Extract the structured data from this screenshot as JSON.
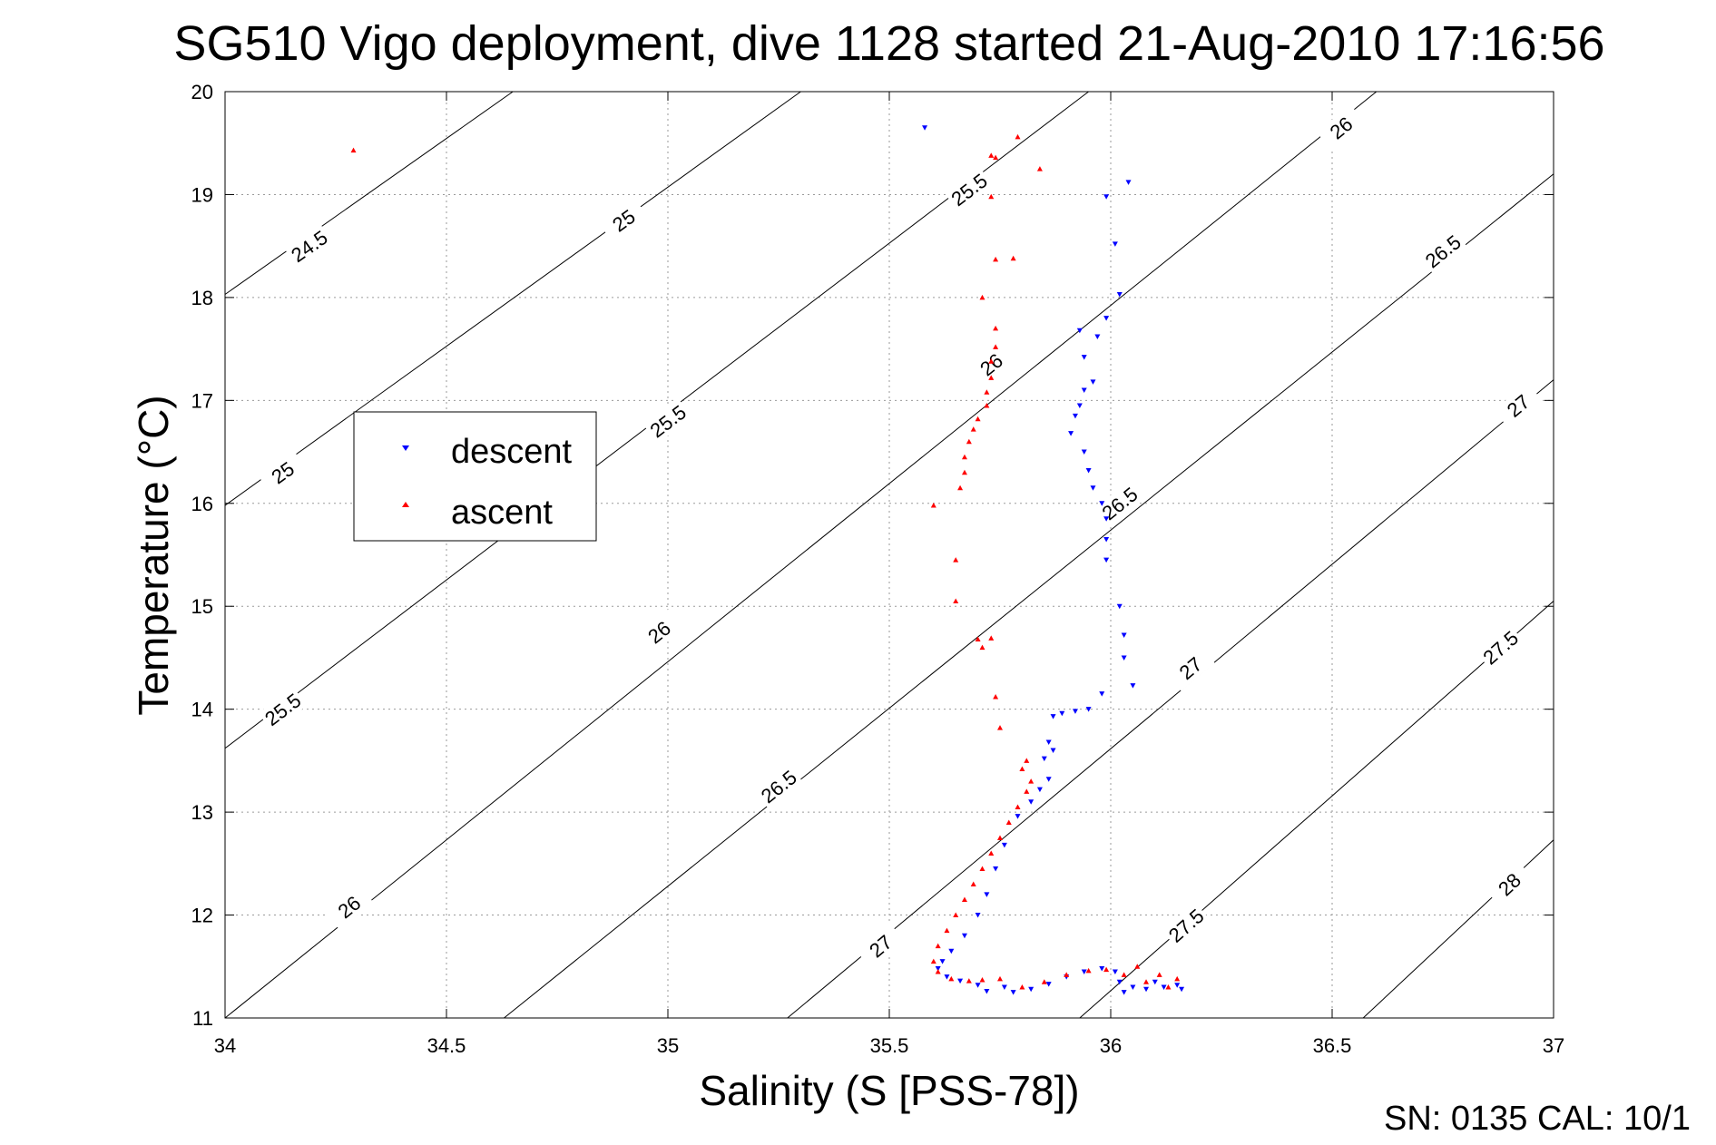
{
  "chart_data": {
    "type": "scatter",
    "title": "SG510 Vigo deployment, dive 1128 started 21-Aug-2010 17:16:56",
    "xlabel": "Salinity (S [PSS-78])",
    "ylabel": "Temperature (°C)",
    "xlim": [
      34,
      37
    ],
    "ylim": [
      11,
      20
    ],
    "grid": true,
    "x_ticks": [
      "34",
      "34.5",
      "35",
      "35.5",
      "36",
      "36.5",
      "37"
    ],
    "y_ticks": [
      "11",
      "12",
      "13",
      "14",
      "15",
      "16",
      "17",
      "18",
      "19",
      "20"
    ],
    "legend": {
      "position": "left",
      "entries": [
        {
          "name": "descent",
          "color": "#0000ff",
          "marker": "triangle-down"
        },
        {
          "name": "ascent",
          "color": "#ff0000",
          "marker": "triangle-up"
        }
      ]
    },
    "density_contours": [
      {
        "sigma": "24.5",
        "points": [
          [
            34.0,
            18.03
          ],
          [
            34.65,
            20.0
          ]
        ],
        "labels": [
          [
            34.19,
            18.5
          ]
        ]
      },
      {
        "sigma": "25",
        "points": [
          [
            34.0,
            15.98
          ],
          [
            35.3,
            20.0
          ]
        ],
        "labels": [
          [
            34.13,
            16.3
          ],
          [
            34.9,
            18.75
          ]
        ]
      },
      {
        "sigma": "25.5",
        "points": [
          [
            34.0,
            13.62
          ],
          [
            35.95,
            20.0
          ]
        ],
        "labels": [
          [
            34.13,
            14.0
          ],
          [
            35.0,
            16.8
          ],
          [
            35.68,
            19.05
          ]
        ]
      },
      {
        "sigma": "26",
        "points": [
          [
            34.0,
            11.0
          ],
          [
            36.6,
            20.0
          ]
        ],
        "labels": [
          [
            34.28,
            12.08
          ],
          [
            34.98,
            14.75
          ],
          [
            35.73,
            17.35
          ],
          [
            36.52,
            19.65
          ]
        ]
      },
      {
        "sigma": "26.5",
        "points": [
          [
            34.63,
            11.0
          ],
          [
            37.0,
            19.2
          ]
        ],
        "labels": [
          [
            35.25,
            13.25
          ],
          [
            36.02,
            16.0
          ],
          [
            36.75,
            18.45
          ]
        ]
      },
      {
        "sigma": "27",
        "points": [
          [
            35.27,
            11.0
          ],
          [
            37.0,
            17.2
          ]
        ],
        "labels": [
          [
            35.48,
            11.7
          ],
          [
            36.18,
            14.4
          ],
          [
            36.92,
            16.95
          ]
        ]
      },
      {
        "sigma": "27.5",
        "points": [
          [
            35.93,
            11.0
          ],
          [
            37.0,
            15.05
          ]
        ],
        "labels": [
          [
            36.17,
            11.9
          ],
          [
            36.88,
            14.6
          ]
        ]
      },
      {
        "sigma": "28",
        "points": [
          [
            36.57,
            11.0
          ],
          [
            37.0,
            12.73
          ]
        ],
        "labels": [
          [
            36.9,
            12.3
          ]
        ]
      }
    ],
    "series": [
      {
        "name": "descent",
        "color": "#0000ff",
        "marker": "triangle-down",
        "points": [
          [
            35.58,
            19.65
          ],
          [
            36.04,
            19.12
          ],
          [
            35.99,
            18.98
          ],
          [
            36.01,
            18.52
          ],
          [
            36.02,
            18.03
          ],
          [
            35.99,
            17.8
          ],
          [
            35.93,
            17.68
          ],
          [
            35.97,
            17.62
          ],
          [
            35.94,
            17.42
          ],
          [
            35.96,
            17.18
          ],
          [
            35.94,
            17.1
          ],
          [
            35.93,
            16.95
          ],
          [
            35.92,
            16.85
          ],
          [
            35.91,
            16.68
          ],
          [
            35.94,
            16.5
          ],
          [
            35.95,
            16.32
          ],
          [
            35.96,
            16.15
          ],
          [
            35.98,
            16.0
          ],
          [
            35.99,
            15.85
          ],
          [
            35.99,
            15.65
          ],
          [
            35.99,
            15.45
          ],
          [
            36.02,
            15.0
          ],
          [
            36.03,
            14.72
          ],
          [
            36.03,
            14.5
          ],
          [
            36.05,
            14.23
          ],
          [
            35.98,
            14.15
          ],
          [
            35.95,
            14.0
          ],
          [
            35.92,
            13.98
          ],
          [
            35.89,
            13.96
          ],
          [
            35.87,
            13.93
          ],
          [
            35.86,
            13.68
          ],
          [
            35.87,
            13.6
          ],
          [
            35.85,
            13.52
          ],
          [
            35.86,
            13.32
          ],
          [
            35.84,
            13.22
          ],
          [
            35.82,
            13.1
          ],
          [
            35.79,
            12.96
          ],
          [
            35.76,
            12.68
          ],
          [
            35.74,
            12.45
          ],
          [
            35.72,
            12.2
          ],
          [
            35.7,
            12.0
          ],
          [
            35.67,
            11.8
          ],
          [
            35.64,
            11.65
          ],
          [
            35.62,
            11.55
          ],
          [
            35.61,
            11.48
          ],
          [
            35.63,
            11.4
          ],
          [
            35.66,
            11.36
          ],
          [
            35.7,
            11.32
          ],
          [
            35.72,
            11.26
          ],
          [
            35.76,
            11.3
          ],
          [
            35.78,
            11.25
          ],
          [
            35.82,
            11.28
          ],
          [
            35.86,
            11.33
          ],
          [
            35.9,
            11.4
          ],
          [
            35.94,
            11.45
          ],
          [
            35.98,
            11.48
          ],
          [
            36.01,
            11.45
          ],
          [
            36.02,
            11.35
          ],
          [
            36.03,
            11.25
          ],
          [
            36.05,
            11.3
          ],
          [
            36.08,
            11.28
          ],
          [
            36.1,
            11.35
          ],
          [
            36.12,
            11.3
          ],
          [
            36.15,
            11.32
          ],
          [
            36.16,
            11.28
          ]
        ]
      },
      {
        "name": "ascent",
        "color": "#ff0000",
        "marker": "triangle-up",
        "points": [
          [
            34.29,
            19.43
          ],
          [
            35.79,
            19.56
          ],
          [
            35.73,
            19.38
          ],
          [
            35.74,
            19.36
          ],
          [
            35.84,
            19.25
          ],
          [
            35.73,
            18.98
          ],
          [
            35.74,
            18.37
          ],
          [
            35.78,
            18.38
          ],
          [
            35.71,
            18.0
          ],
          [
            35.74,
            17.7
          ],
          [
            35.74,
            17.52
          ],
          [
            35.73,
            17.38
          ],
          [
            35.73,
            17.22
          ],
          [
            35.72,
            17.08
          ],
          [
            35.72,
            16.95
          ],
          [
            35.7,
            16.82
          ],
          [
            35.69,
            16.72
          ],
          [
            35.68,
            16.6
          ],
          [
            35.67,
            16.45
          ],
          [
            35.67,
            16.3
          ],
          [
            35.66,
            16.15
          ],
          [
            35.6,
            15.98
          ],
          [
            35.65,
            15.45
          ],
          [
            35.65,
            15.05
          ],
          [
            35.7,
            14.68
          ],
          [
            35.73,
            14.69
          ],
          [
            35.71,
            14.6
          ],
          [
            35.74,
            14.12
          ],
          [
            35.75,
            13.82
          ],
          [
            35.81,
            13.5
          ],
          [
            35.8,
            13.42
          ],
          [
            35.82,
            13.3
          ],
          [
            35.81,
            13.2
          ],
          [
            35.79,
            13.05
          ],
          [
            35.77,
            12.9
          ],
          [
            35.75,
            12.75
          ],
          [
            35.73,
            12.6
          ],
          [
            35.71,
            12.45
          ],
          [
            35.69,
            12.3
          ],
          [
            35.67,
            12.15
          ],
          [
            35.65,
            12.0
          ],
          [
            35.63,
            11.85
          ],
          [
            35.61,
            11.7
          ],
          [
            35.6,
            11.55
          ],
          [
            35.61,
            11.45
          ],
          [
            35.64,
            11.38
          ],
          [
            35.68,
            11.36
          ],
          [
            35.71,
            11.37
          ],
          [
            35.75,
            11.38
          ],
          [
            35.8,
            11.3
          ],
          [
            35.85,
            11.35
          ],
          [
            35.9,
            11.42
          ],
          [
            35.95,
            11.46
          ],
          [
            35.99,
            11.47
          ],
          [
            36.03,
            11.42
          ],
          [
            36.06,
            11.5
          ],
          [
            36.08,
            11.35
          ],
          [
            36.11,
            11.42
          ],
          [
            36.13,
            11.3
          ],
          [
            36.15,
            11.38
          ]
        ]
      }
    ]
  },
  "footer": {
    "serial_text": "SN: 0135  CAL: 10/1"
  }
}
